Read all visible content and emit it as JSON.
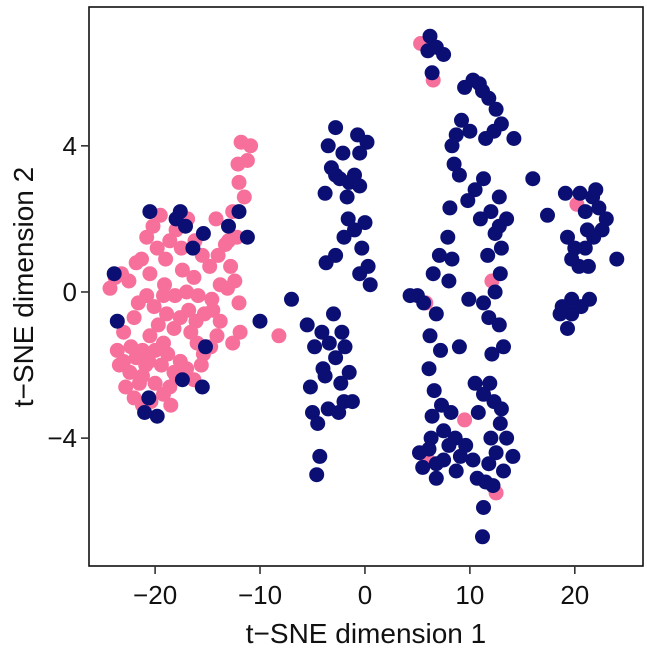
{
  "chart_data": {
    "type": "scatter",
    "xlabel": "t−SNE dimension 1",
    "ylabel": "t−SNE dimension 2",
    "xlim": [
      -26.3,
      26.5
    ],
    "ylim": [
      -7.5,
      7.8
    ],
    "x_ticks": [
      -20,
      -10,
      0,
      10,
      20
    ],
    "x_tick_labels": [
      "−20",
      "−10",
      "0",
      "10",
      "20"
    ],
    "y_ticks": [
      -4,
      0,
      4
    ],
    "y_tick_labels": [
      "−4",
      "0",
      "4"
    ],
    "grid": false,
    "legend": "none",
    "series": [
      {
        "color": "#f7709c",
        "points": [
          [
            -23.8,
            0.4
          ],
          [
            -23.2,
            0.5
          ],
          [
            -22.5,
            0.3
          ],
          [
            -21.8,
            0.8
          ],
          [
            -20.8,
            1.5
          ],
          [
            -20.2,
            1.8
          ],
          [
            -19.5,
            2.1
          ],
          [
            -19.8,
            1.2
          ],
          [
            -20.5,
            0.5
          ],
          [
            -19.0,
            0.9
          ],
          [
            -18.6,
            1.4
          ],
          [
            -18.0,
            1.7
          ],
          [
            -17.5,
            1.2
          ],
          [
            -16.9,
            2.0
          ],
          [
            -16.2,
            1.4
          ],
          [
            -15.5,
            1.0
          ],
          [
            -14.8,
            0.7
          ],
          [
            -14.0,
            1.0
          ],
          [
            -13.3,
            1.3
          ],
          [
            -12.8,
            0.7
          ],
          [
            -12.2,
            1.5
          ],
          [
            -13.8,
            0.2
          ],
          [
            -13.1,
            0.1
          ],
          [
            -14.6,
            -0.2
          ],
          [
            -15.9,
            -0.1
          ],
          [
            -17.0,
            0.0
          ],
          [
            -18.1,
            -0.1
          ],
          [
            -19.2,
            -0.1
          ],
          [
            -20.1,
            -0.4
          ],
          [
            -20.8,
            -0.1
          ],
          [
            -21.6,
            -0.3
          ],
          [
            -22.0,
            -0.7
          ],
          [
            -23.0,
            -1.1
          ],
          [
            -22.3,
            -1.5
          ],
          [
            -21.2,
            -1.6
          ],
          [
            -20.5,
            -1.2
          ],
          [
            -19.7,
            -0.9
          ],
          [
            -18.9,
            -0.6
          ],
          [
            -18.2,
            -1.0
          ],
          [
            -17.6,
            -0.7
          ],
          [
            -16.8,
            -0.5
          ],
          [
            -16.1,
            -0.8
          ],
          [
            -15.3,
            -0.6
          ],
          [
            -14.5,
            -0.5
          ],
          [
            -13.8,
            -0.8
          ],
          [
            -16.6,
            -1.1
          ],
          [
            -16.0,
            -1.4
          ],
          [
            -15.4,
            -1.7
          ],
          [
            -14.7,
            -1.5
          ],
          [
            -23.6,
            -1.6
          ],
          [
            -23.0,
            -1.9
          ],
          [
            -22.4,
            -2.2
          ],
          [
            -21.8,
            -1.8
          ],
          [
            -21.2,
            -2.3
          ],
          [
            -20.6,
            -1.9
          ],
          [
            -20.0,
            -1.6
          ],
          [
            -19.4,
            -2.0
          ],
          [
            -18.8,
            -1.7
          ],
          [
            -18.2,
            -2.2
          ],
          [
            -17.6,
            -1.9
          ],
          [
            -17.0,
            -2.1
          ],
          [
            -16.3,
            -2.4
          ],
          [
            -22.8,
            -2.6
          ],
          [
            -22.0,
            -2.9
          ],
          [
            -21.2,
            -3.1
          ],
          [
            -20.4,
            -3.0
          ],
          [
            -20.0,
            -2.5
          ],
          [
            -19.2,
            -2.8
          ],
          [
            -18.5,
            -3.1
          ],
          [
            -21.5,
            -2.5
          ],
          [
            -12.0,
            3.0
          ],
          [
            -11.2,
            3.6
          ],
          [
            -10.9,
            4.0
          ],
          [
            -11.8,
            4.1
          ],
          [
            -12.1,
            3.5
          ],
          [
            -11.5,
            2.6
          ],
          [
            -12.6,
            2.2
          ],
          [
            -13.0,
            1.4
          ],
          [
            -12.4,
            0.3
          ],
          [
            -12.0,
            -0.3
          ],
          [
            -11.9,
            -1.1
          ],
          [
            -12.6,
            -1.4
          ],
          [
            -8.2,
            -1.2
          ],
          [
            -14.2,
            2.0
          ],
          [
            -24.3,
            0.1
          ],
          [
            -18.0,
            -2.3
          ],
          [
            -15.6,
            -2.0
          ],
          [
            -20.9,
            -2.0
          ],
          [
            -16.3,
            0.4
          ],
          [
            -17.4,
            0.6
          ],
          [
            -19.2,
            -1.4
          ],
          [
            -18.6,
            -2.6
          ],
          [
            -23.4,
            -2.0
          ],
          [
            -19.1,
            0.2
          ],
          [
            -21.3,
            0.9
          ],
          [
            -14.1,
            -1.2
          ],
          [
            5.3,
            6.8
          ],
          [
            6.5,
            5.8
          ],
          [
            12.5,
            -5.5
          ],
          [
            6.0,
            -4.6
          ],
          [
            9.5,
            -3.5
          ],
          [
            20.2,
            2.4
          ],
          [
            12.1,
            0.3
          ],
          [
            5.8,
            -0.3
          ]
        ]
      },
      {
        "color": "#0b0f74",
        "points": [
          [
            -23.9,
            0.5
          ],
          [
            -23.6,
            -0.8
          ],
          [
            -20.5,
            2.2
          ],
          [
            -18.0,
            2.0
          ],
          [
            -17.6,
            2.2
          ],
          [
            -17.1,
            1.8
          ],
          [
            -16.4,
            1.2
          ],
          [
            -15.4,
            1.6
          ],
          [
            -13.0,
            1.8
          ],
          [
            -12.0,
            2.2
          ],
          [
            -11.2,
            1.5
          ],
          [
            -15.2,
            -1.5
          ],
          [
            -15.5,
            -2.6
          ],
          [
            -17.4,
            -2.4
          ],
          [
            -19.8,
            -3.4
          ],
          [
            -20.6,
            -2.9
          ],
          [
            -21.0,
            -3.3
          ],
          [
            -10.0,
            -0.8
          ],
          [
            -7.0,
            -0.2
          ],
          [
            -5.5,
            -0.9
          ],
          [
            -4.8,
            -1.5
          ],
          [
            -5.2,
            -2.6
          ],
          [
            -5.0,
            -3.3
          ],
          [
            -4.5,
            -3.6
          ],
          [
            -4.3,
            -4.5
          ],
          [
            -4.6,
            -5.0
          ],
          [
            -3.5,
            -3.2
          ],
          [
            -3.8,
            -2.3
          ],
          [
            -3.4,
            -1.4
          ],
          [
            -4.1,
            -1.1
          ],
          [
            -2.8,
            -1.8
          ],
          [
            -2.3,
            -2.5
          ],
          [
            -2.0,
            -3.0
          ],
          [
            -1.5,
            -2.2
          ],
          [
            -1.2,
            -3.0
          ],
          [
            -1.9,
            -1.5
          ],
          [
            -3.0,
            -0.6
          ],
          [
            -3.7,
            0.8
          ],
          [
            -2.8,
            1.0
          ],
          [
            -2.0,
            1.5
          ],
          [
            -1.6,
            2.0
          ],
          [
            -1.0,
            1.7
          ],
          [
            -3.8,
            2.7
          ],
          [
            -3.2,
            3.4
          ],
          [
            -2.8,
            3.2
          ],
          [
            -3.5,
            4.0
          ],
          [
            -2.8,
            4.5
          ],
          [
            -2.1,
            3.8
          ],
          [
            -1.5,
            3.0
          ],
          [
            -1.0,
            3.2
          ],
          [
            -0.5,
            2.9
          ],
          [
            -0.3,
            1.2
          ],
          [
            -0.5,
            0.5
          ],
          [
            0.3,
            0.7
          ],
          [
            0.5,
            0.2
          ],
          [
            -0.7,
            4.3
          ],
          [
            0.2,
            4.1
          ],
          [
            -1.7,
            2.6
          ],
          [
            -2.4,
            3.1
          ],
          [
            -0.5,
            3.8
          ],
          [
            -4.0,
            -2.1
          ],
          [
            -2.5,
            -3.3
          ],
          [
            -2.2,
            -1.1
          ],
          [
            0.0,
            1.9
          ],
          [
            4.3,
            -0.1
          ],
          [
            5.0,
            -0.1
          ],
          [
            5.6,
            -0.3
          ],
          [
            6.2,
            7.0
          ],
          [
            6.0,
            6.6
          ],
          [
            6.8,
            6.7
          ],
          [
            7.5,
            6.5
          ],
          [
            6.4,
            6.0
          ],
          [
            9.5,
            5.6
          ],
          [
            10.3,
            5.8
          ],
          [
            10.9,
            5.7
          ],
          [
            11.2,
            5.5
          ],
          [
            11.8,
            5.3
          ],
          [
            12.5,
            5.0
          ],
          [
            13.0,
            4.6
          ],
          [
            12.3,
            4.4
          ],
          [
            11.5,
            4.2
          ],
          [
            10.0,
            4.4
          ],
          [
            9.2,
            4.7
          ],
          [
            8.7,
            4.3
          ],
          [
            8.5,
            3.5
          ],
          [
            8.3,
            4.0
          ],
          [
            9.0,
            3.2
          ],
          [
            9.8,
            2.5
          ],
          [
            10.5,
            2.8
          ],
          [
            11.3,
            3.1
          ],
          [
            11.0,
            2.0
          ],
          [
            12.0,
            2.2
          ],
          [
            12.8,
            2.6
          ],
          [
            13.5,
            2.0
          ],
          [
            13.0,
            1.2
          ],
          [
            12.4,
            1.6
          ],
          [
            11.7,
            1.0
          ],
          [
            12.9,
            0.5
          ],
          [
            12.4,
            0.0
          ],
          [
            11.3,
            -0.3
          ],
          [
            11.8,
            -0.7
          ],
          [
            12.8,
            -0.9
          ],
          [
            13.2,
            -1.5
          ],
          [
            8.1,
            2.3
          ],
          [
            7.9,
            1.5
          ],
          [
            8.3,
            0.9
          ],
          [
            8.0,
            0.3
          ],
          [
            7.1,
            1.0
          ],
          [
            6.5,
            0.5
          ],
          [
            6.8,
            -0.6
          ],
          [
            6.2,
            -1.2
          ],
          [
            7.2,
            -1.6
          ],
          [
            6.1,
            -2.1
          ],
          [
            6.6,
            -2.7
          ],
          [
            7.3,
            -3.1
          ],
          [
            6.4,
            -3.4
          ],
          [
            7.5,
            -3.8
          ],
          [
            6.3,
            -4.0
          ],
          [
            7.5,
            -4.6
          ],
          [
            6.8,
            -5.1
          ],
          [
            5.2,
            -4.4
          ],
          [
            6.1,
            -4.3
          ],
          [
            8.0,
            -4.2
          ],
          [
            8.6,
            -4.0
          ],
          [
            9.1,
            -4.5
          ],
          [
            9.6,
            -4.2
          ],
          [
            10.3,
            -4.6
          ],
          [
            10.7,
            -5.1
          ],
          [
            11.5,
            -5.2
          ],
          [
            12.2,
            -5.3
          ],
          [
            11.8,
            -4.7
          ],
          [
            12.5,
            -4.4
          ],
          [
            13.2,
            -4.9
          ],
          [
            14.1,
            -4.5
          ],
          [
            12.9,
            -3.6
          ],
          [
            12.3,
            -3.0
          ],
          [
            11.3,
            -2.8
          ],
          [
            12.1,
            -1.7
          ],
          [
            11.9,
            -2.5
          ],
          [
            10.8,
            -3.3
          ],
          [
            10.5,
            -2.5
          ],
          [
            8.2,
            -3.3
          ],
          [
            8.7,
            -4.9
          ],
          [
            5.5,
            -4.8
          ],
          [
            11.2,
            -6.7
          ],
          [
            13.5,
            -4.0
          ],
          [
            11.3,
            -5.9
          ],
          [
            12.0,
            -4.0
          ],
          [
            20.5,
            2.7
          ],
          [
            21.0,
            2.2
          ],
          [
            21.7,
            2.6
          ],
          [
            22.3,
            2.3
          ],
          [
            23.0,
            2.0
          ],
          [
            22.6,
            1.7
          ],
          [
            21.8,
            1.5
          ],
          [
            21.0,
            1.2
          ],
          [
            20.4,
            0.7
          ],
          [
            19.3,
            1.5
          ],
          [
            19.1,
            2.7
          ],
          [
            17.4,
            2.1
          ],
          [
            16.0,
            3.1
          ],
          [
            22.0,
            2.8
          ],
          [
            21.2,
            1.7
          ],
          [
            20.0,
            1.2
          ],
          [
            19.7,
            0.9
          ],
          [
            21.3,
            0.7
          ],
          [
            21.4,
            -0.2
          ],
          [
            19.7,
            -0.2
          ],
          [
            18.8,
            -0.4
          ],
          [
            20.6,
            -0.4
          ],
          [
            19.7,
            -0.6
          ],
          [
            18.6,
            -0.6
          ],
          [
            19.3,
            -1.0
          ],
          [
            24.0,
            0.9
          ],
          [
            14.2,
            4.2
          ],
          [
            12.8,
            1.8
          ],
          [
            9.0,
            -1.5
          ],
          [
            6.8,
            -4.7
          ],
          [
            13.0,
            -3.2
          ],
          [
            9.9,
            -0.2
          ]
        ]
      }
    ]
  }
}
